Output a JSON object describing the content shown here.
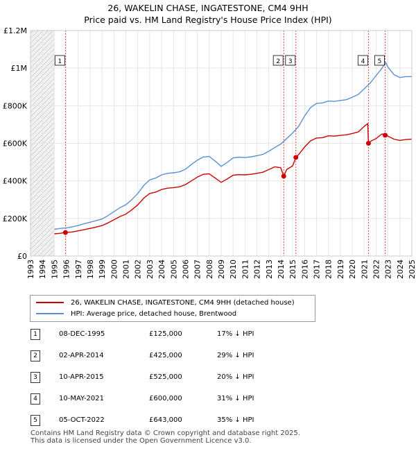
{
  "chart_data": {
    "type": "line",
    "title": "26, WAKELIN CHASE, INGATESTONE, CM4 9HH",
    "subtitle": "Price paid vs. HM Land Registry's House Price Index (HPI)",
    "xlim": [
      1993,
      2025
    ],
    "ylim": [
      0,
      1200000
    ],
    "x_ticks": [
      "1993",
      "1994",
      "1995",
      "1996",
      "1997",
      "1998",
      "1999",
      "2000",
      "2001",
      "2002",
      "2003",
      "2004",
      "2005",
      "2006",
      "2007",
      "2008",
      "2009",
      "2010",
      "2011",
      "2012",
      "2013",
      "2014",
      "2015",
      "2016",
      "2017",
      "2018",
      "2019",
      "2020",
      "2021",
      "2022",
      "2023",
      "2024",
      "2025"
    ],
    "y_ticks": [
      {
        "value": 0,
        "label": "£0"
      },
      {
        "value": 200000,
        "label": "£200K"
      },
      {
        "value": 400000,
        "label": "£400K"
      },
      {
        "value": 600000,
        "label": "£600K"
      },
      {
        "value": 800000,
        "label": "£800K"
      },
      {
        "value": 1000000,
        "label": "£1M"
      },
      {
        "value": 1200000,
        "label": "£1.2M"
      }
    ],
    "hatched_before": 1995.0,
    "hatched_after": 2025.0,
    "series": [
      {
        "name": "26, WAKELIN CHASE, INGATESTONE, CM4 9HH (detached house)",
        "color": "#cc0000",
        "x": [
          1995.0,
          1995.5,
          1995.93,
          1996.5,
          1997.0,
          1997.5,
          1998.0,
          1998.5,
          1999.0,
          1999.5,
          2000.0,
          2000.5,
          2001.0,
          2001.5,
          2002.0,
          2002.5,
          2003.0,
          2003.5,
          2004.0,
          2004.5,
          2005.0,
          2005.5,
          2006.0,
          2006.5,
          2007.0,
          2007.5,
          2008.0,
          2008.5,
          2009.0,
          2009.5,
          2010.0,
          2010.5,
          2011.0,
          2011.5,
          2012.0,
          2012.5,
          2013.0,
          2013.5,
          2014.0,
          2014.25,
          2014.5,
          2015.0,
          2015.27,
          2015.5,
          2016.0,
          2016.5,
          2017.0,
          2017.5,
          2018.0,
          2018.5,
          2019.0,
          2019.5,
          2020.0,
          2020.5,
          2021.0,
          2021.3,
          2021.36,
          2021.6,
          2022.0,
          2022.5,
          2022.76,
          2023.0,
          2023.5,
          2024.0,
          2024.5,
          2025.0
        ],
        "values": [
          118000,
          121000,
          125000,
          128000,
          134000,
          140000,
          147000,
          154000,
          162000,
          176000,
          193000,
          210000,
          223000,
          246000,
          272000,
          308000,
          333000,
          340000,
          354000,
          361000,
          364000,
          368000,
          380000,
          400000,
          420000,
          435000,
          437000,
          415000,
          392000,
          410000,
          430000,
          433000,
          432000,
          435000,
          440000,
          446000,
          460000,
          475000,
          470000,
          425000,
          460000,
          480000,
          525000,
          540000,
          580000,
          613000,
          628000,
          630000,
          640000,
          638000,
          642000,
          645000,
          652000,
          660000,
          690000,
          705000,
          600000,
          613000,
          625000,
          650000,
          643000,
          638000,
          622000,
          615000,
          620000,
          622000
        ]
      },
      {
        "name": "HPI: Average price, detached house, Brentwood",
        "color": "#5b8fd4",
        "x": [
          1995.0,
          1995.5,
          1996.0,
          1996.5,
          1997.0,
          1997.5,
          1998.0,
          1998.5,
          1999.0,
          1999.5,
          2000.0,
          2000.5,
          2001.0,
          2001.5,
          2002.0,
          2002.5,
          2003.0,
          2003.5,
          2004.0,
          2004.5,
          2005.0,
          2005.5,
          2006.0,
          2006.5,
          2007.0,
          2007.5,
          2008.0,
          2008.5,
          2009.0,
          2009.5,
          2010.0,
          2010.5,
          2011.0,
          2011.5,
          2012.0,
          2012.5,
          2013.0,
          2013.5,
          2014.0,
          2014.5,
          2015.0,
          2015.5,
          2016.0,
          2016.5,
          2017.0,
          2017.5,
          2018.0,
          2018.5,
          2019.0,
          2019.5,
          2020.0,
          2020.5,
          2021.0,
          2021.5,
          2022.0,
          2022.5,
          2022.8,
          2023.0,
          2023.5,
          2024.0,
          2024.5,
          2025.0
        ],
        "values": [
          142000,
          147000,
          150000,
          155000,
          163000,
          172000,
          180000,
          188000,
          197000,
          215000,
          236000,
          257000,
          273000,
          300000,
          333000,
          375000,
          405000,
          415000,
          432000,
          440000,
          443000,
          448000,
          462000,
          487000,
          510000,
          527000,
          530000,
          505000,
          477000,
          498000,
          522000,
          526000,
          524000,
          528000,
          534000,
          541000,
          558000,
          577000,
          596000,
          625000,
          655000,
          690000,
          745000,
          790000,
          812000,
          815000,
          825000,
          823000,
          828000,
          832000,
          845000,
          860000,
          890000,
          920000,
          960000,
          1000000,
          1030000,
          1005000,
          965000,
          950000,
          955000,
          955000
        ]
      }
    ],
    "sales": [
      {
        "num": "1",
        "x": 1995.93,
        "price": 125000,
        "date": "08-DEC-1995",
        "price_label": "£125,000",
        "hpi_label": "17% ↓ HPI"
      },
      {
        "num": "2",
        "x": 2014.25,
        "price": 425000,
        "date": "02-APR-2014",
        "price_label": "£425,000",
        "hpi_label": "29% ↓ HPI"
      },
      {
        "num": "3",
        "x": 2015.27,
        "price": 525000,
        "date": "10-APR-2015",
        "price_label": "£525,000",
        "hpi_label": "20% ↓ HPI"
      },
      {
        "num": "4",
        "x": 2021.36,
        "price": 600000,
        "date": "10-MAY-2021",
        "price_label": "£600,000",
        "hpi_label": "31% ↓ HPI"
      },
      {
        "num": "5",
        "x": 2022.76,
        "price": 643000,
        "date": "05-OCT-2022",
        "price_label": "£643,000",
        "hpi_label": "35% ↓ HPI"
      }
    ],
    "footer_line1": "Contains HM Land Registry data © Crown copyright and database right 2025.",
    "footer_line2": "This data is licensed under the Open Government Licence v3.0."
  }
}
